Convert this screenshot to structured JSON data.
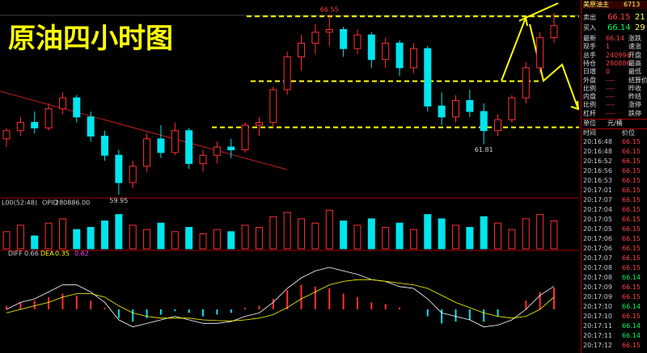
{
  "chart_data": {
    "type": "candlestick",
    "title": "原油四小时图",
    "candles": [
      [
        62.0,
        62.4,
        61.7,
        62.3
      ],
      [
        62.3,
        62.8,
        62.1,
        62.6
      ],
      [
        62.6,
        63.0,
        62.2,
        62.4
      ],
      [
        62.4,
        63.3,
        62.3,
        63.1
      ],
      [
        63.1,
        63.7,
        62.9,
        63.5
      ],
      [
        63.5,
        63.6,
        62.6,
        62.8
      ],
      [
        62.8,
        63.0,
        61.9,
        62.1
      ],
      [
        62.1,
        62.3,
        61.2,
        61.4
      ],
      [
        61.4,
        61.6,
        59.95,
        60.4
      ],
      [
        60.4,
        61.2,
        60.2,
        61.0
      ],
      [
        61.0,
        62.2,
        60.8,
        62.0
      ],
      [
        62.0,
        62.5,
        61.3,
        61.5
      ],
      [
        61.5,
        62.6,
        61.4,
        62.3
      ],
      [
        62.3,
        62.4,
        60.9,
        61.1
      ],
      [
        61.1,
        61.6,
        60.8,
        61.4
      ],
      [
        61.4,
        61.9,
        61.1,
        61.7
      ],
      [
        61.7,
        62.0,
        61.3,
        61.6
      ],
      [
        61.6,
        62.6,
        61.5,
        62.5
      ],
      [
        62.5,
        62.8,
        62.1,
        62.6
      ],
      [
        62.6,
        63.9,
        62.4,
        63.8
      ],
      [
        63.8,
        65.2,
        63.6,
        65.0
      ],
      [
        65.0,
        65.8,
        64.5,
        65.5
      ],
      [
        65.5,
        66.2,
        65.1,
        65.9
      ],
      [
        65.9,
        66.55,
        65.4,
        66.0
      ],
      [
        66.0,
        66.1,
        65.0,
        65.3
      ],
      [
        65.3,
        66.0,
        65.1,
        65.8
      ],
      [
        65.8,
        65.9,
        64.6,
        64.9
      ],
      [
        64.9,
        65.7,
        64.6,
        65.5
      ],
      [
        65.5,
        65.6,
        64.3,
        64.6
      ],
      [
        64.6,
        65.5,
        64.4,
        65.3
      ],
      [
        65.3,
        65.4,
        63.0,
        63.2
      ],
      [
        63.2,
        63.7,
        62.5,
        62.8
      ],
      [
        62.8,
        63.6,
        62.6,
        63.4
      ],
      [
        63.4,
        63.8,
        62.8,
        63.0
      ],
      [
        63.0,
        63.3,
        61.81,
        62.3
      ],
      [
        62.3,
        62.9,
        62.1,
        62.7
      ],
      [
        62.7,
        63.6,
        62.6,
        63.5
      ],
      [
        63.5,
        64.8,
        63.3,
        64.6
      ],
      [
        64.6,
        65.9,
        64.4,
        65.7
      ],
      [
        65.7,
        66.6,
        65.5,
        66.14
      ]
    ],
    "ylim": [
      59.84,
      66.93
    ],
    "levels": [
      66.48,
      64.11,
      62.42
    ],
    "annotations": [
      66.55,
      61.81,
      59.95
    ],
    "up_color": "#ff3030",
    "down_color": "#00e5ee",
    "level_color": "#ffff00",
    "volume": {
      "label": "L00(52:48)",
      "opid_label": "OPID",
      "opid": "280886.00",
      "values": [
        40,
        55,
        30,
        60,
        70,
        45,
        50,
        65,
        80,
        55,
        45,
        60,
        40,
        50,
        35,
        45,
        40,
        55,
        50,
        75,
        85,
        70,
        60,
        90,
        65,
        55,
        70,
        50,
        60,
        45,
        80,
        70,
        55,
        50,
        75,
        60,
        45,
        70,
        80,
        65
      ],
      "ylim": [
        0,
        100
      ]
    },
    "macd": {
      "diff_label": "DIFF",
      "diff": 0.66,
      "dea_label": "DEA",
      "dea": 0.35,
      "macd": 0.62,
      "hist": [
        0.1,
        0.2,
        0.25,
        0.35,
        0.45,
        0.4,
        0.25,
        0.05,
        -0.25,
        -0.35,
        -0.25,
        -0.15,
        -0.05,
        -0.1,
        -0.2,
        -0.15,
        -0.1,
        0.05,
        0.1,
        0.3,
        0.55,
        0.7,
        0.65,
        0.6,
        0.45,
        0.35,
        0.2,
        0.15,
        0.05,
        0.0,
        -0.2,
        -0.4,
        -0.35,
        -0.3,
        -0.35,
        -0.2,
        0.0,
        0.25,
        0.5,
        0.62
      ],
      "diff_series": [
        0.0,
        0.2,
        0.3,
        0.5,
        0.7,
        0.7,
        0.5,
        0.2,
        -0.3,
        -0.5,
        -0.4,
        -0.3,
        -0.2,
        -0.3,
        -0.4,
        -0.4,
        -0.35,
        -0.2,
        -0.1,
        0.2,
        0.6,
        0.9,
        1.1,
        1.2,
        1.1,
        1.0,
        0.85,
        0.8,
        0.65,
        0.6,
        0.3,
        -0.1,
        -0.2,
        -0.3,
        -0.5,
        -0.45,
        -0.3,
        0.0,
        0.4,
        0.66
      ],
      "dea_series": [
        -0.1,
        0.0,
        0.1,
        0.2,
        0.35,
        0.45,
        0.45,
        0.35,
        0.1,
        -0.1,
        -0.2,
        -0.25,
        -0.25,
        -0.25,
        -0.3,
        -0.32,
        -0.33,
        -0.3,
        -0.25,
        -0.15,
        0.05,
        0.3,
        0.5,
        0.7,
        0.8,
        0.85,
        0.85,
        0.8,
        0.75,
        0.7,
        0.6,
        0.4,
        0.2,
        0.05,
        -0.1,
        -0.2,
        -0.25,
        -0.2,
        0.0,
        0.35
      ],
      "ylim": [
        -1.2,
        1.5
      ]
    },
    "quote": {
      "name": "美原油主",
      "code": "6713",
      "ask_label": "卖出",
      "ask": 66.15,
      "ask_vol": 21,
      "bid_label": "买入",
      "bid": 66.14,
      "bid_vol": 29,
      "rows": [
        [
          "最新",
          66.14,
          "涨跌"
        ],
        [
          "现手",
          1,
          "速涨"
        ],
        [
          "总手",
          240994,
          "开盘"
        ],
        [
          "持仓",
          280886,
          "最高"
        ],
        [
          "日增",
          0,
          "最低"
        ],
        [
          "外盘",
          "----",
          "结算价"
        ],
        [
          "比例",
          "----",
          "昨收"
        ],
        [
          "内盘",
          "----",
          "昨结"
        ],
        [
          "比例",
          "----",
          "涨停"
        ],
        [
          "杠杆",
          "----",
          "跌停"
        ]
      ],
      "unit_label": "单位",
      "unit": "元/桶",
      "tick_header": [
        "时间",
        "价位"
      ],
      "ticks": [
        [
          "20:16:48",
          66.15
        ],
        [
          "20:16:48",
          66.15
        ],
        [
          "20:16:52",
          66.15
        ],
        [
          "20:16:56",
          66.15
        ],
        [
          "20:16:53",
          66.15
        ],
        [
          "20:17:01",
          66.15
        ],
        [
          "20:17:07",
          66.15
        ],
        [
          "20:17:04",
          66.15
        ],
        [
          "20:17:05",
          66.15
        ],
        [
          "20:17:05",
          66.15
        ],
        [
          "20:17:06",
          66.15
        ],
        [
          "20:17:06",
          66.15
        ],
        [
          "20:17:07",
          66.15
        ],
        [
          "20:17:08",
          66.15
        ],
        [
          "20:17:08",
          66.14
        ],
        [
          "20:17:09",
          66.15
        ],
        [
          "20:17:09",
          66.15
        ],
        [
          "20:17:10",
          66.14
        ],
        [
          "20:17:10",
          66.15
        ],
        [
          "20:17:11",
          66.14
        ],
        [
          "20:17:11",
          66.14
        ],
        [
          "20:17:12",
          66.15
        ]
      ]
    }
  }
}
